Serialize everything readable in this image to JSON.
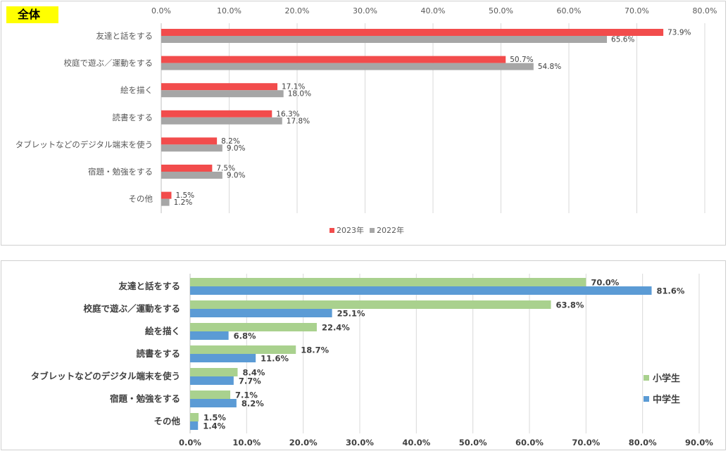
{
  "chart_data": [
    {
      "type": "bar",
      "orientation": "horizontal",
      "title": "全体",
      "categories": [
        "友達と話をする",
        "校庭で遊ぶ／運動をする",
        "絵を描く",
        "読書をする",
        "タブレットなどのデジタル端末を使う",
        "宿題・勉強をする",
        "その他"
      ],
      "series": [
        {
          "name": "2023年",
          "color": "#f24c4c",
          "values": [
            73.9,
            50.7,
            17.1,
            16.3,
            8.2,
            7.5,
            1.5
          ],
          "labels": [
            "73.9%",
            "50.7%",
            "17.1%",
            "16.3%",
            "8.2%",
            "7.5%",
            "1.5%"
          ]
        },
        {
          "name": "2022年",
          "color": "#a6a6a6",
          "values": [
            65.6,
            54.8,
            18.0,
            17.8,
            9.0,
            9.0,
            1.2
          ],
          "labels": [
            "65.6%",
            "54.8%",
            "18.0%",
            "17.8%",
            "9.0%",
            "9.0%",
            "1.2%"
          ]
        }
      ],
      "xlim": [
        0,
        80
      ],
      "ticks": [
        "0.0%",
        "10.0%",
        "20.0%",
        "30.0%",
        "40.0%",
        "50.0%",
        "60.0%",
        "70.0%",
        "80.0%"
      ],
      "axis_position": "top",
      "grid": true,
      "legend": "bottom"
    },
    {
      "type": "bar",
      "orientation": "horizontal",
      "title": "",
      "categories": [
        "友達と話をする",
        "校庭で遊ぶ／運動をする",
        "絵を描く",
        "読書をする",
        "タブレットなどのデジタル端末を使う",
        "宿題・勉強をする",
        "その他"
      ],
      "series": [
        {
          "name": "小学生",
          "color": "#a9d18e",
          "values": [
            70.0,
            63.8,
            22.4,
            18.7,
            8.4,
            7.1,
            1.5
          ],
          "labels": [
            "70.0%",
            "63.8%",
            "22.4%",
            "18.7%",
            "8.4%",
            "7.1%",
            "1.5%"
          ]
        },
        {
          "name": "中学生",
          "color": "#5b9bd5",
          "values": [
            81.6,
            25.1,
            6.8,
            11.6,
            7.7,
            8.2,
            1.4
          ],
          "labels": [
            "81.6%",
            "25.1%",
            "6.8%",
            "11.6%",
            "7.7%",
            "8.2%",
            "1.4%"
          ]
        }
      ],
      "xlim": [
        0,
        90
      ],
      "ticks": [
        "0.0%",
        "10.0%",
        "20.0%",
        "30.0%",
        "40.0%",
        "50.0%",
        "60.0%",
        "70.0%",
        "80.0%",
        "90.0%"
      ],
      "axis_position": "bottom",
      "grid": true,
      "legend": "right"
    }
  ]
}
